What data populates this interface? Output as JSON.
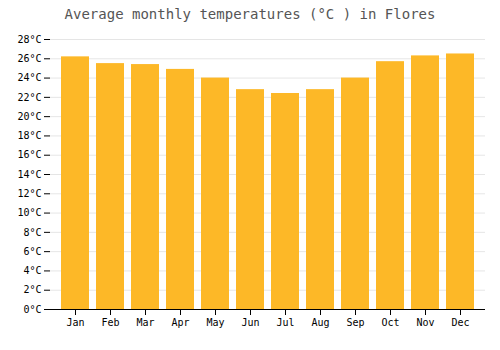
{
  "chart_data": {
    "type": "bar",
    "title": "Average monthly temperatures (°C ) in Flores",
    "categories": [
      "Jan",
      "Feb",
      "Mar",
      "Apr",
      "May",
      "Jun",
      "Jul",
      "Aug",
      "Sep",
      "Oct",
      "Nov",
      "Dec"
    ],
    "values": [
      26.2,
      25.5,
      25.4,
      24.9,
      24.0,
      22.8,
      22.4,
      22.8,
      24.0,
      25.7,
      26.3,
      26.5
    ],
    "color": "#FDB827",
    "ylim": [
      0,
      28
    ],
    "yticks": [
      {
        "value": 0,
        "label": "0°C"
      },
      {
        "value": 2,
        "label": "2°C"
      },
      {
        "value": 4,
        "label": "4°C"
      },
      {
        "value": 6,
        "label": "6°C"
      },
      {
        "value": 8,
        "label": "8°C"
      },
      {
        "value": 10,
        "label": "10°C"
      },
      {
        "value": 12,
        "label": "12°C"
      },
      {
        "value": 14,
        "label": "14°C"
      },
      {
        "value": 16,
        "label": "16°C"
      },
      {
        "value": 18,
        "label": "18°C"
      },
      {
        "value": 20,
        "label": "20°C"
      },
      {
        "value": 22,
        "label": "22°C"
      },
      {
        "value": 24,
        "label": "24°C"
      },
      {
        "value": 26,
        "label": "26°C"
      },
      {
        "value": 28,
        "label": "28°C"
      }
    ],
    "grid": true
  }
}
